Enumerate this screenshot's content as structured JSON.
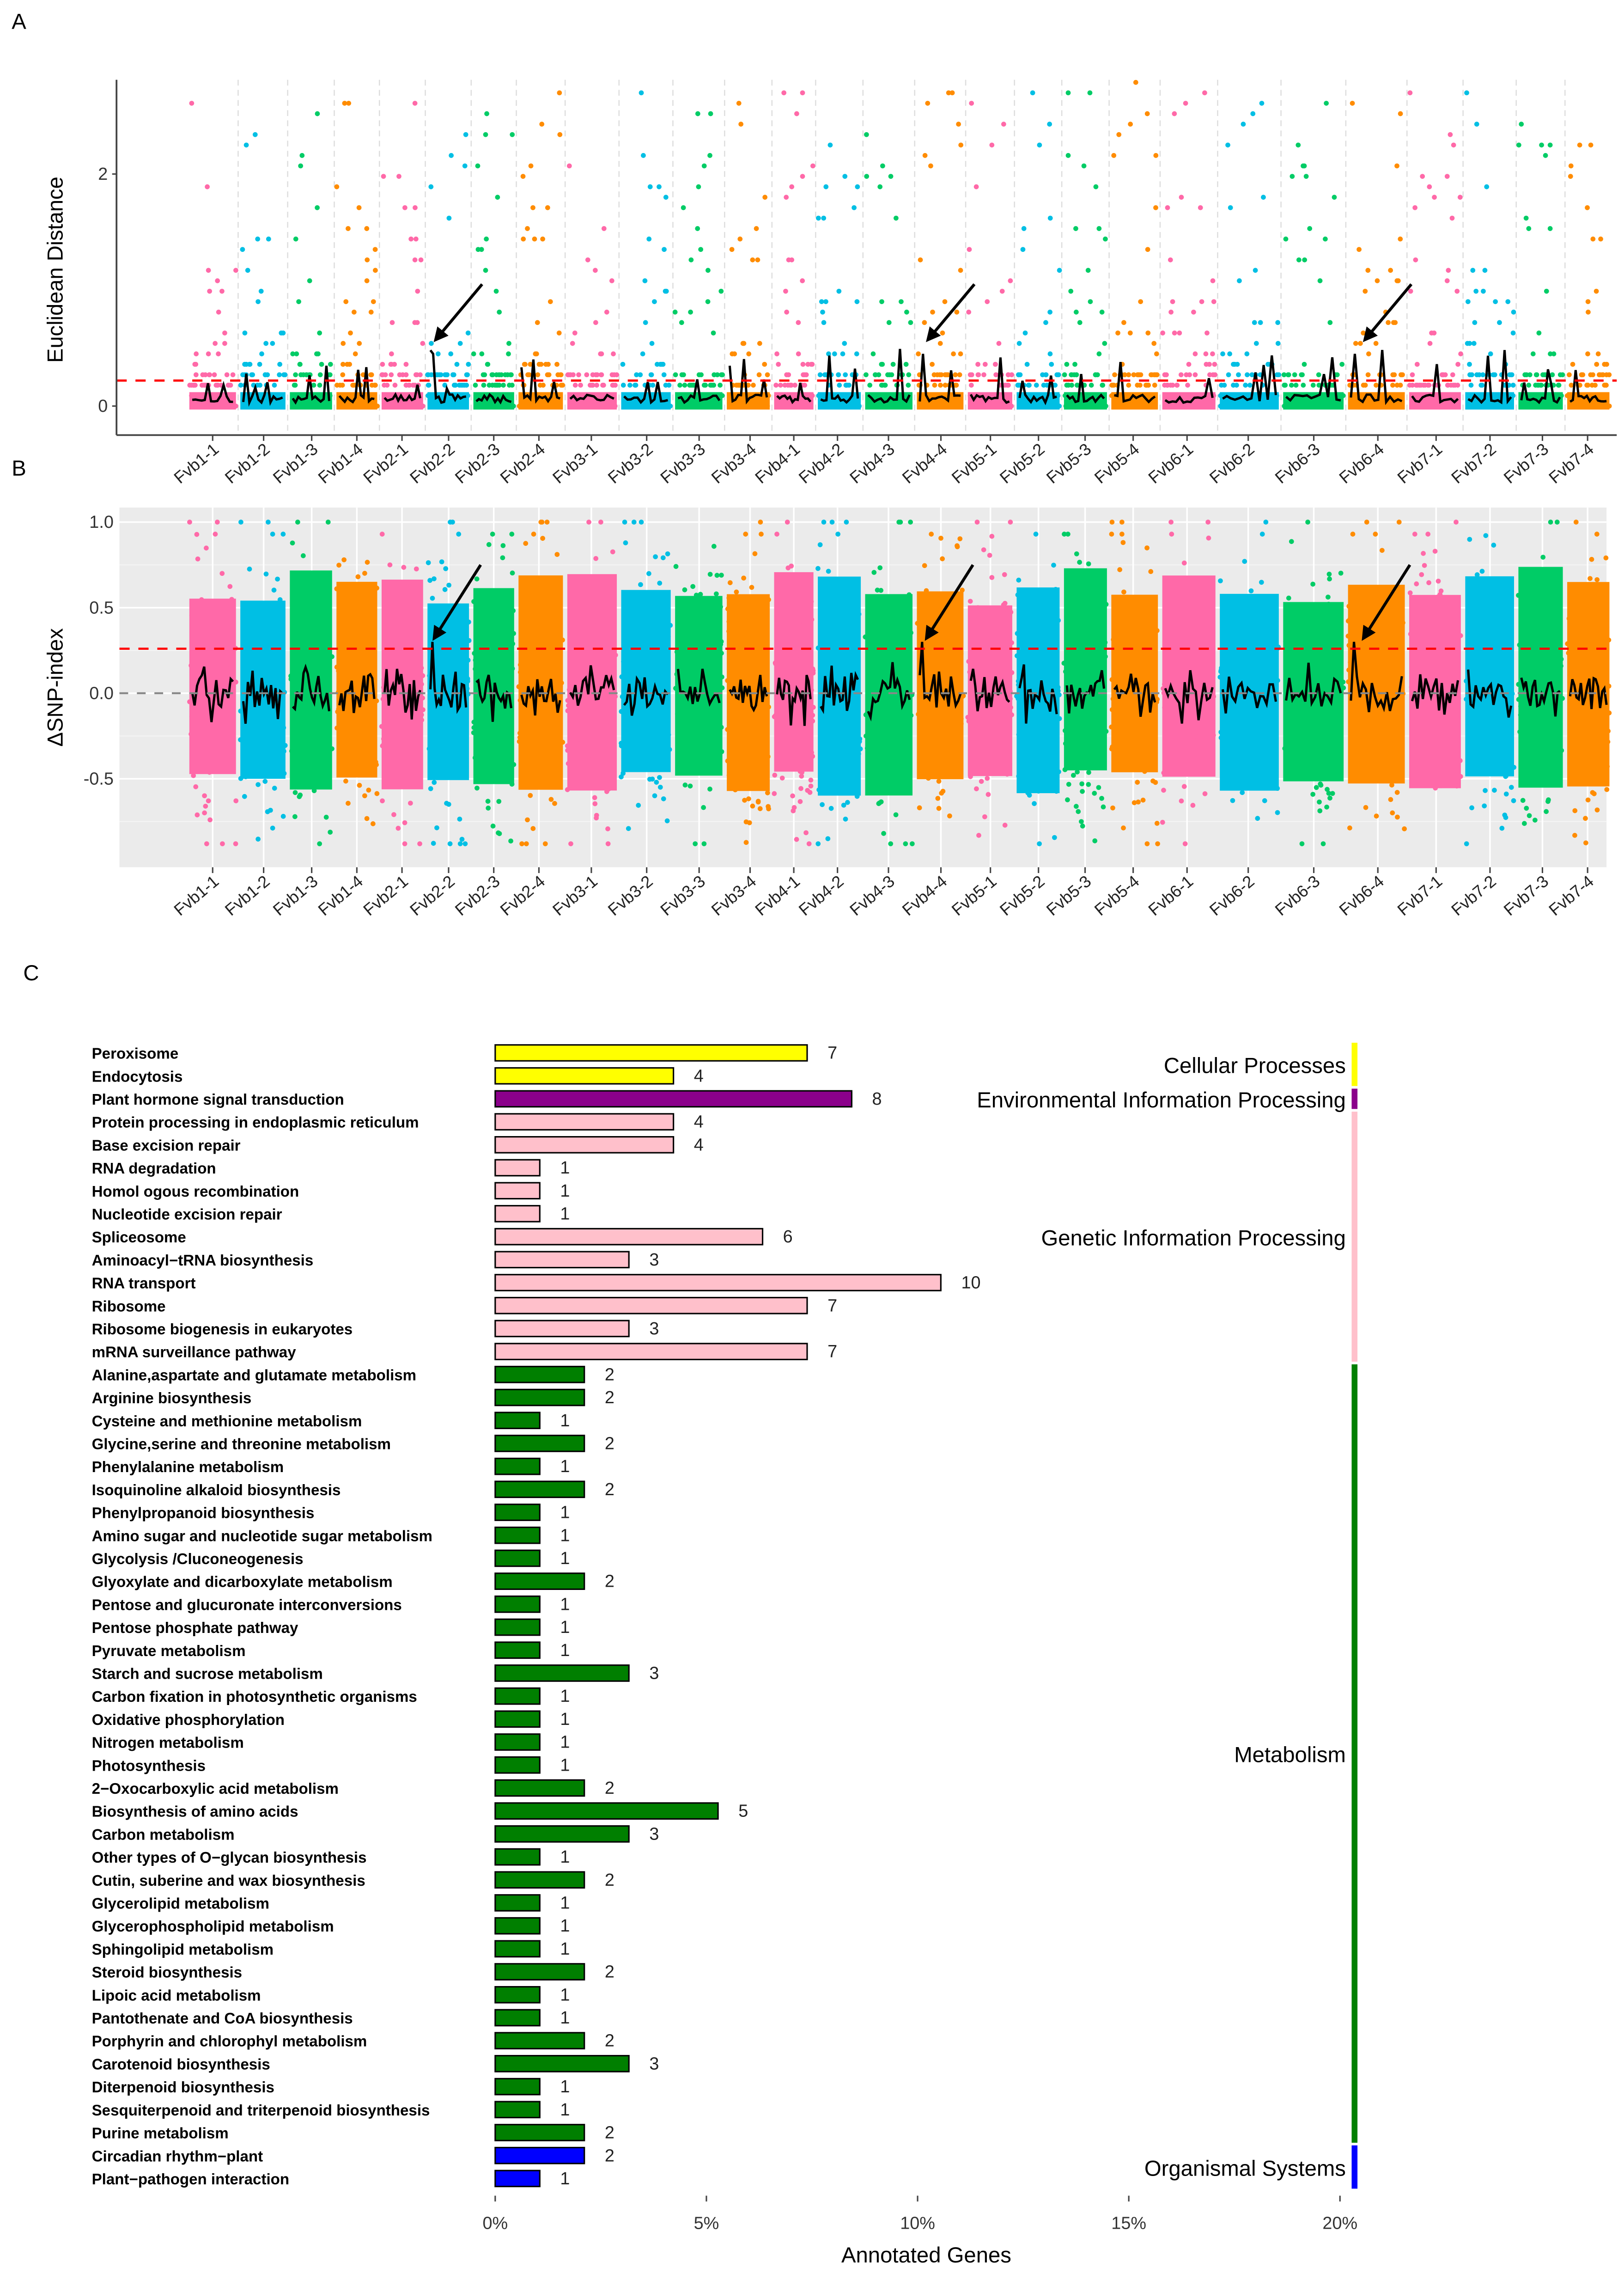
{
  "panel_labels": {
    "a": "A",
    "b": "B",
    "c": "C"
  },
  "chart_data": [
    {
      "panel": "A",
      "type": "scatter",
      "ylabel": "Euclidean Distance",
      "yticks": [
        0,
        2
      ],
      "ytick_labels": [
        "0",
        "2"
      ],
      "ylim": [
        -0.25,
        2.8
      ],
      "threshold": 0.22,
      "threshold_color": "#FF0000",
      "grid": "vertical dashed lines between chromosomes",
      "fit_line_color": "#000000",
      "arrows_at": [
        "Fvb2-2",
        "Fvb4-4",
        "Fvb6-4"
      ],
      "chromosomes": [
        "Fvb1-1",
        "Fvb1-2",
        "Fvb1-3",
        "Fvb1-4",
        "Fvb2-1",
        "Fvb2-2",
        "Fvb2-3",
        "Fvb2-4",
        "Fvb3-1",
        "Fvb3-2",
        "Fvb3-3",
        "Fvb3-4",
        "Fvb4-1",
        "Fvb4-2",
        "Fvb4-3",
        "Fvb4-4",
        "Fvb5-1",
        "Fvb5-2",
        "Fvb5-3",
        "Fvb5-4",
        "Fvb6-1",
        "Fvb6-2",
        "Fvb6-3",
        "Fvb6-4",
        "Fvb7-1",
        "Fvb7-2",
        "Fvb7-3",
        "Fvb7-4"
      ],
      "series_colors": [
        "#FF69A8",
        "#00BFE4",
        "#00CC66",
        "#FF8C00"
      ]
    },
    {
      "panel": "B",
      "type": "scatter",
      "ylabel": "ΔSNP-index",
      "yticks": [
        -0.5,
        0,
        0.5,
        1.0
      ],
      "ytick_labels": [
        "-0.5",
        "0.0",
        "0.5",
        "1.0"
      ],
      "ylim": [
        -0.95,
        1.05
      ],
      "threshold": 0.26,
      "threshold_color": "#FF0000",
      "baseline": 0,
      "baseline_color": "#888888",
      "background": "#EBEBEB",
      "fit_line_color": "#000000",
      "arrows_at": [
        "Fvb2-2",
        "Fvb4-4",
        "Fvb6-4"
      ],
      "series_colors": [
        "#FF69A8",
        "#00BFE4",
        "#00CC66",
        "#FF8C00"
      ]
    },
    {
      "panel": "C",
      "type": "bar",
      "orientation": "horizontal",
      "xlabel": "Annotated Genes",
      "xticks": [
        0,
        5,
        10,
        15,
        20
      ],
      "xtick_labels": [
        "0%",
        "5%",
        "10%",
        "15%",
        "20%"
      ],
      "xlim": [
        0,
        20
      ],
      "percent_per_gene": 1.055,
      "categories": [
        "Peroxisome",
        "Endocytosis",
        "Plant hormone signal transduction",
        "Protein processing in endoplasmic reticulum",
        "Base excision repair",
        "RNA degradation",
        "Homol ogous recombination",
        "Nucleotide excision repair",
        "Spliceosome",
        "Aminoacyl−tRNA biosynthesis",
        "RNA transport",
        "Ribosome",
        "Ribosome biogenesis in eukaryotes",
        "mRNA surveillance pathway",
        "Alanine,aspartate and glutamate metabolism",
        "Arginine biosynthesis",
        "Cysteine and methionine metabolism",
        "Glycine,serine and threonine metabolism",
        "Phenylalanine metabolism",
        "Isoquinoline alkaloid biosynthesis",
        "Phenylpropanoid biosynthesis",
        "Amino sugar and nucleotide sugar metabolism",
        "Glycolysis /Cluconeogenesis",
        "Glyoxylate and dicarboxylate metabolism",
        "Pentose and glucuronate interconversions",
        "Pentose phosphate pathway",
        "Pyruvate metabolism",
        "Starch and sucrose metabolism",
        "Carbon fixation in photosynthetic organisms",
        "Oxidative phosphorylation",
        "Nitrogen metabolism",
        "Photosynthesis",
        "2−Oxocarboxylic acid metabolism",
        "Biosynthesis of amino acids",
        "Carbon metabolism",
        "Other types of O−glycan biosynthesis",
        "Cutin, suberine and wax biosynthesis",
        "Glycerolipid metabolism",
        "Glycerophospholipid metabolism",
        "Sphingolipid metabolism",
        "Steroid biosynthesis",
        "Lipoic acid metabolism",
        "Pantothenate and CoA biosynthesis",
        "Porphyrin and chlorophyl metabolism",
        "Carotenoid biosynthesis",
        "Diterpenoid biosynthesis",
        "Sesquiterpenoid and triterpenoid biosynthesis",
        "Purine metabolism",
        "Circadian rhythm−plant",
        "Plant−pathogen interaction"
      ],
      "values": [
        7,
        4,
        8,
        4,
        4,
        1,
        1,
        1,
        6,
        3,
        10,
        7,
        3,
        7,
        2,
        2,
        1,
        2,
        1,
        2,
        1,
        1,
        1,
        2,
        1,
        1,
        1,
        3,
        1,
        1,
        1,
        1,
        2,
        5,
        3,
        1,
        2,
        1,
        1,
        1,
        2,
        1,
        1,
        2,
        3,
        1,
        1,
        2,
        2,
        1
      ],
      "bar_colors": [
        "#FFFF00",
        "#FFFF00",
        "#8B008B",
        "#FFC0CB",
        "#FFC0CB",
        "#FFC0CB",
        "#FFC0CB",
        "#FFC0CB",
        "#FFC0CB",
        "#FFC0CB",
        "#FFC0CB",
        "#FFC0CB",
        "#FFC0CB",
        "#FFC0CB",
        "#007F00",
        "#007F00",
        "#007F00",
        "#007F00",
        "#007F00",
        "#007F00",
        "#007F00",
        "#007F00",
        "#007F00",
        "#007F00",
        "#007F00",
        "#007F00",
        "#007F00",
        "#007F00",
        "#007F00",
        "#007F00",
        "#007F00",
        "#007F00",
        "#007F00",
        "#007F00",
        "#007F00",
        "#007F00",
        "#007F00",
        "#007F00",
        "#007F00",
        "#007F00",
        "#007F00",
        "#007F00",
        "#007F00",
        "#007F00",
        "#007F00",
        "#007F00",
        "#007F00",
        "#007F00",
        "#0000FF",
        "#0000FF"
      ],
      "groups": [
        {
          "name": "Cellular Processes",
          "color": "#FFFF00",
          "start": 0,
          "end": 1
        },
        {
          "name": "Environmental Information Processing",
          "color": "#8B008B",
          "start": 2,
          "end": 2
        },
        {
          "name": "Genetic Information Processing",
          "color": "#FFC0CB",
          "start": 3,
          "end": 13
        },
        {
          "name": "Metabolism",
          "color": "#007F00",
          "start": 14,
          "end": 47
        },
        {
          "name": "Organismal Systems",
          "color": "#0000FF",
          "start": 48,
          "end": 49
        }
      ]
    }
  ]
}
